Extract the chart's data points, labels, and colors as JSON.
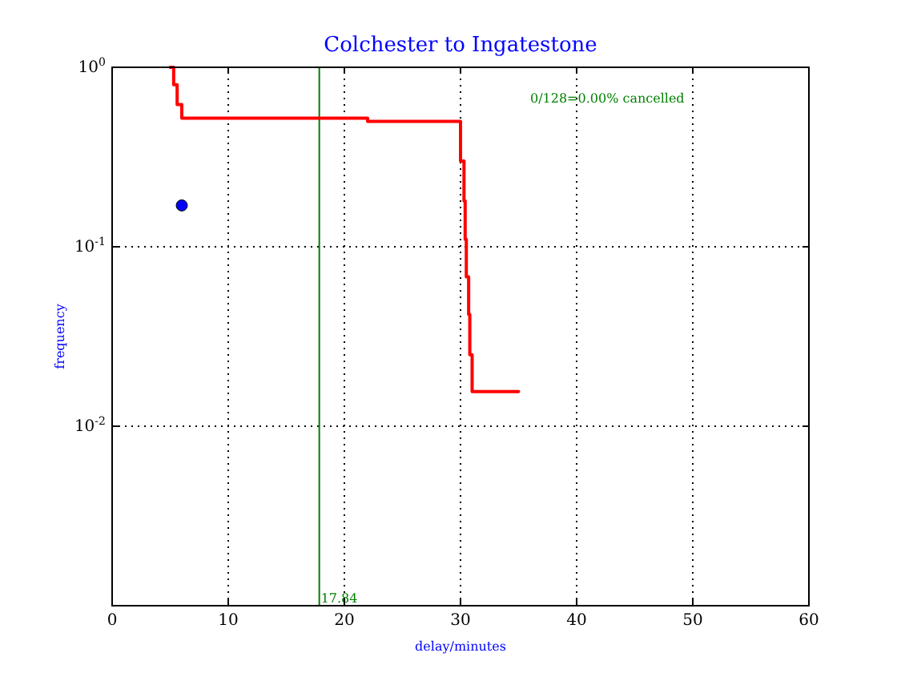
{
  "chart_data": {
    "type": "line",
    "title": "Colchester to Ingatestone",
    "xlabel": "delay/minutes",
    "ylabel": "frequency",
    "xlim": [
      0,
      60
    ],
    "xticks": [
      0,
      10,
      20,
      30,
      40,
      50,
      60
    ],
    "ylim": [
      0.001,
      1
    ],
    "yticks": [
      {
        "value": 1,
        "label": "10$^{0}$"
      },
      {
        "value": 0.1,
        "label": "10$^{-1}$"
      },
      {
        "value": 0.01,
        "label": "10$^{-2}$"
      }
    ],
    "log": "y",
    "grid": true,
    "series": [
      {
        "color": "#ff0000",
        "marker": "none",
        "line_style": "solid",
        "x": [
          5,
          5.3,
          5.3,
          5.6,
          5.6,
          6,
          6,
          22,
          22,
          30,
          30,
          30.3,
          30.3,
          30.4,
          30.4,
          30.5,
          30.5,
          30.7,
          30.7,
          30.8,
          30.8,
          31,
          31,
          35
        ],
        "values": [
          1,
          1,
          0.8,
          0.8,
          0.62,
          0.62,
          0.52,
          0.52,
          0.5,
          0.5,
          0.3,
          0.3,
          0.18,
          0.18,
          0.11,
          0.11,
          0.068,
          0.068,
          0.042,
          0.042,
          0.025,
          0.025,
          0.0156,
          0.0156
        ]
      },
      {
        "type": "scatter",
        "color": "#0000ff",
        "marker": "circle",
        "x": [
          6
        ],
        "values": [
          0.17
        ]
      }
    ],
    "ref_lines": [
      {
        "axis": "x",
        "value": 17.84,
        "label": "17.84",
        "color": "#008000"
      }
    ],
    "annotations": [
      "0/128=0.00% cancelled"
    ]
  }
}
